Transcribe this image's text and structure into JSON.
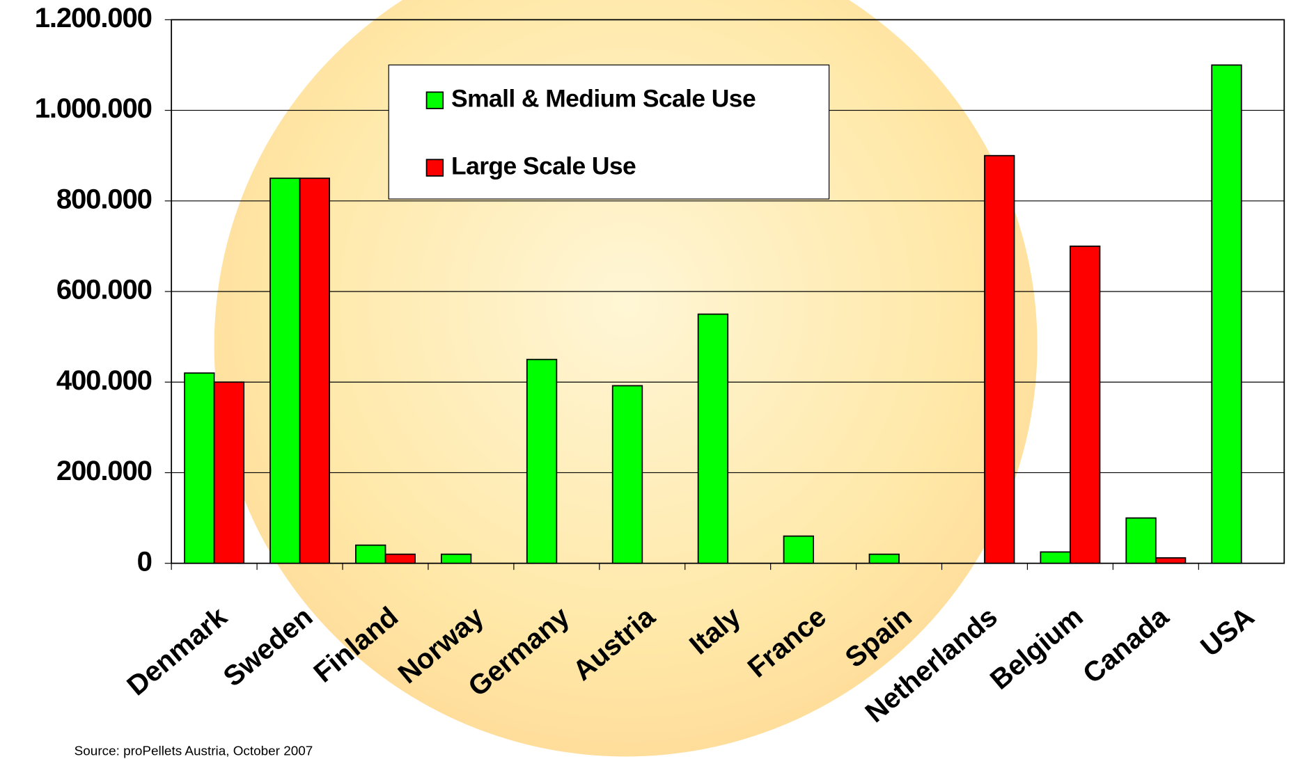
{
  "chart_data": {
    "type": "bar",
    "categories": [
      "Denmark",
      "Sweden",
      "Finland",
      "Norway",
      "Germany",
      "Austria",
      "Italy",
      "France",
      "Spain",
      "Netherlands",
      "Belgium",
      "Canada",
      "USA"
    ],
    "series": [
      {
        "name": "Small & Medium Scale Use",
        "color": "#00ff00",
        "values": [
          420000,
          850000,
          40000,
          20000,
          450000,
          392000,
          550000,
          60000,
          20000,
          null,
          25000,
          100000,
          1100000
        ]
      },
      {
        "name": "Large Scale Use",
        "color": "#ff0000",
        "values": [
          400000,
          850000,
          20000,
          null,
          null,
          null,
          null,
          null,
          null,
          900000,
          700000,
          12000,
          null
        ]
      }
    ],
    "ylim": [
      0,
      1200000
    ],
    "yticks": [
      0,
      {
        "value": 200000,
        "label": "200.000"
      },
      {
        "value": 400000,
        "label": "400.000"
      },
      {
        "value": 600000,
        "label": "600.000"
      },
      {
        "value": 800000,
        "label": "800.000"
      },
      {
        "value": 1000000,
        "label": "1.000.000"
      },
      {
        "value": 1200000,
        "label": "1.200.000"
      }
    ],
    "grid": true,
    "legend": "upper center",
    "source": "Source: proPellets Austria, October 2007"
  }
}
